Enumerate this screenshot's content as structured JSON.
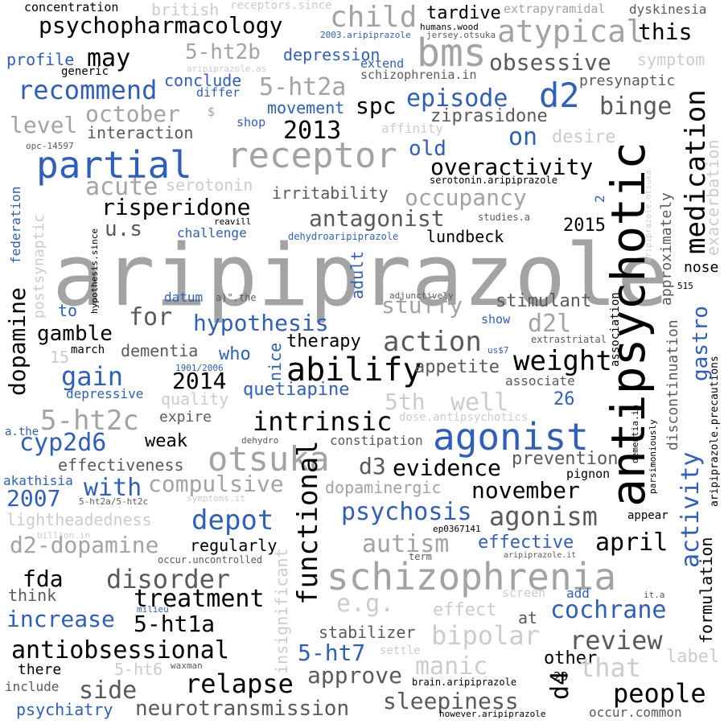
{
  "words": [
    {
      "text": "aripiprazole",
      "color": "light",
      "size": "xl"
    },
    {
      "text": "antipsychotic",
      "color": "black",
      "size": "xl"
    },
    {
      "text": "receptor",
      "color": "light",
      "size": "l"
    },
    {
      "text": "partial",
      "color": "blue",
      "size": "l"
    },
    {
      "text": "agonist",
      "color": "blue",
      "size": "l"
    },
    {
      "text": "schizophrenia",
      "color": "light",
      "size": "l"
    },
    {
      "text": "otsuka",
      "color": "light",
      "size": "l"
    },
    {
      "text": "bms",
      "color": "light",
      "size": "l"
    },
    {
      "text": "child",
      "color": "light",
      "size": "l"
    },
    {
      "text": "atypical",
      "color": "light",
      "size": "l"
    },
    {
      "text": "d2",
      "color": "blue",
      "size": "l"
    },
    {
      "text": "psychopharmacology",
      "color": "black",
      "size": "m"
    },
    {
      "text": "tardive",
      "color": "black",
      "size": "s"
    },
    {
      "text": "dyskinesia",
      "color": "dark",
      "size": "xs"
    },
    {
      "text": "concentration",
      "color": "black",
      "size": "xs"
    },
    {
      "text": "british",
      "color": "pale",
      "size": "s"
    },
    {
      "text": "receptors.since",
      "color": "pale",
      "size": "xs"
    },
    {
      "text": "extrapyramidal",
      "color": "light",
      "size": "xs"
    },
    {
      "text": "humans.wood",
      "color": "black",
      "size": "xxs"
    },
    {
      "text": "2003.aripiprazole",
      "color": "blue",
      "size": "xxs"
    },
    {
      "text": "jersey.otsuka",
      "color": "dark",
      "size": "xxs"
    },
    {
      "text": "this",
      "color": "black",
      "size": "m"
    },
    {
      "text": "may",
      "color": "black",
      "size": "m"
    },
    {
      "text": "5-ht2b",
      "color": "light",
      "size": "m"
    },
    {
      "text": "profile",
      "color": "blue",
      "size": "s"
    },
    {
      "text": "generic",
      "color": "black",
      "size": "xs"
    },
    {
      "text": "depression",
      "color": "blue",
      "size": "s"
    },
    {
      "text": "extend",
      "color": "blue",
      "size": "xs"
    },
    {
      "text": "obsessive",
      "color": "dark",
      "size": "m"
    },
    {
      "text": "symptom",
      "color": "pale",
      "size": "s"
    },
    {
      "text": "schizophrenia.in",
      "color": "dark",
      "size": "xs"
    },
    {
      "text": "aripiprazole.as",
      "color": "pale",
      "size": "xxs"
    },
    {
      "text": "conclude",
      "color": "blue",
      "size": "s"
    },
    {
      "text": "recommend",
      "color": "blue",
      "size": "m"
    },
    {
      "text": "5-ht2a",
      "color": "light",
      "size": "m"
    },
    {
      "text": "episode",
      "color": "blue",
      "size": "m"
    },
    {
      "text": "presynaptic",
      "color": "dark",
      "size": "s"
    },
    {
      "text": "differ",
      "color": "blue",
      "size": "xs"
    },
    {
      "text": "$",
      "color": "light",
      "size": "xs"
    },
    {
      "text": "movement",
      "color": "blue",
      "size": "s"
    },
    {
      "text": "spc",
      "color": "black",
      "size": "m"
    },
    {
      "text": "binge",
      "color": "dark",
      "size": "m"
    },
    {
      "text": "october",
      "color": "light",
      "size": "m"
    },
    {
      "text": "level",
      "color": "light",
      "size": "m"
    },
    {
      "text": "interaction",
      "color": "dark",
      "size": "s"
    },
    {
      "text": "shop",
      "color": "blue",
      "size": "xs"
    },
    {
      "text": "2013",
      "color": "black",
      "size": "m"
    },
    {
      "text": "ziprasidone",
      "color": "dark",
      "size": "s"
    },
    {
      "text": "affinity",
      "color": "pale",
      "size": "xs"
    },
    {
      "text": "on",
      "color": "blue",
      "size": "m"
    },
    {
      "text": "desire",
      "color": "pale",
      "size": "s"
    },
    {
      "text": "old",
      "color": "blue",
      "size": "m"
    },
    {
      "text": "opc-14597",
      "color": "dark",
      "size": "xxs"
    },
    {
      "text": "medication",
      "color": "black",
      "size": "m"
    },
    {
      "text": "exacerbation",
      "color": "pale",
      "size": "s"
    },
    {
      "text": "overactivity",
      "color": "black",
      "size": "m"
    },
    {
      "text": "acute",
      "color": "light",
      "size": "m"
    },
    {
      "text": "serotonin",
      "color": "pale",
      "size": "s"
    },
    {
      "text": "serotonin.aripiprazole",
      "color": "black",
      "size": "xxs"
    },
    {
      "text": "federation",
      "color": "blue",
      "size": "xs"
    },
    {
      "text": "occupancy",
      "color": "light",
      "size": "m"
    },
    {
      "text": "irritability",
      "color": "dark",
      "size": "s"
    },
    {
      "text": "risperidone",
      "color": "black",
      "size": "m"
    },
    {
      "text": "approximately",
      "color": "dark",
      "size": "s"
    },
    {
      "text": "2",
      "color": "blue",
      "size": "xs"
    },
    {
      "text": "aripiprazole.otsuka",
      "color": "pale",
      "size": "xxs"
    },
    {
      "text": "antagonist",
      "color": "dark",
      "size": "m"
    },
    {
      "text": "u.s",
      "color": "dark",
      "size": "m"
    },
    {
      "text": "reavill",
      "color": "black",
      "size": "xxs"
    },
    {
      "text": "studies.a",
      "color": "dark",
      "size": "xxs"
    },
    {
      "text": "2015",
      "color": "black",
      "size": "s"
    },
    {
      "text": "challenge",
      "color": "blue",
      "size": "xs"
    },
    {
      "text": "dehydroaripiprazole",
      "color": "blue",
      "size": "xxs"
    },
    {
      "text": "lundbeck",
      "color": "black",
      "size": "s"
    },
    {
      "text": "postsynaptic",
      "color": "pale",
      "size": "s"
    },
    {
      "text": "hypothesis.since",
      "color": "black",
      "size": "xxs"
    },
    {
      "text": "nose",
      "color": "black",
      "size": "s"
    },
    {
      "text": "515",
      "color": "black",
      "size": "xxs"
    },
    {
      "text": "dopamine",
      "color": "black",
      "size": "m"
    },
    {
      "text": "to",
      "color": "blue",
      "size": "s"
    },
    {
      "text": "datum",
      "color": "blue",
      "size": "xs"
    },
    {
      "text": "a)\".the",
      "color": "dark",
      "size": "xxs"
    },
    {
      "text": "adult",
      "color": "blue",
      "size": "s"
    },
    {
      "text": "adjunctively",
      "color": "dark",
      "size": "xxs"
    },
    {
      "text": "stuffy",
      "color": "light",
      "size": "m"
    },
    {
      "text": "stimulant",
      "color": "dark",
      "size": "s"
    },
    {
      "text": "association",
      "color": "black",
      "size": "xs"
    },
    {
      "text": "gamble",
      "color": "black",
      "size": "m"
    },
    {
      "text": "for",
      "color": "dark",
      "size": "m"
    },
    {
      "text": "hypothesis",
      "color": "blue",
      "size": "m"
    },
    {
      "text": "show",
      "color": "blue",
      "size": "xs"
    },
    {
      "text": "d2l",
      "color": "light",
      "size": "m"
    },
    {
      "text": "discontinuation",
      "color": "dark",
      "size": "s"
    },
    {
      "text": "gastro",
      "color": "blue",
      "size": "m"
    },
    {
      "text": "extrastriatal",
      "color": "dark",
      "size": "xxs"
    },
    {
      "text": "aripiprazole.precautions",
      "color": "black",
      "size": "xs"
    },
    {
      "text": "15",
      "color": "pale",
      "size": "s"
    },
    {
      "text": "march",
      "color": "black",
      "size": "xs"
    },
    {
      "text": "dementia",
      "color": "dark",
      "size": "s"
    },
    {
      "text": "who",
      "color": "blue",
      "size": "s"
    },
    {
      "text": "nice",
      "color": "blue",
      "size": "s"
    },
    {
      "text": "therapy",
      "color": "black",
      "size": "s"
    },
    {
      "text": "action",
      "color": "dark",
      "size": "m"
    },
    {
      "text": "1901/2006",
      "color": "blue",
      "size": "xxs"
    },
    {
      "text": "us$7",
      "color": "blue",
      "size": "xxs"
    },
    {
      "text": "weight",
      "color": "black",
      "size": "m"
    },
    {
      "text": "gain",
      "color": "blue",
      "size": "m"
    },
    {
      "text": "2014",
      "color": "black",
      "size": "m"
    },
    {
      "text": "abilify",
      "color": "black",
      "size": "l"
    },
    {
      "text": "appetite",
      "color": "dark",
      "size": "s"
    },
    {
      "text": "associate",
      "color": "dark",
      "size": "xs"
    },
    {
      "text": "depressive",
      "color": "blue",
      "size": "xs"
    },
    {
      "text": "quetiapine",
      "color": "blue",
      "size": "s"
    },
    {
      "text": "quality",
      "color": "pale",
      "size": "s"
    },
    {
      "text": "5th",
      "color": "pale",
      "size": "m"
    },
    {
      "text": "well",
      "color": "pale",
      "size": "m"
    },
    {
      "text": "26",
      "color": "blue",
      "size": "s"
    },
    {
      "text": "parsimoniously",
      "color": "black",
      "size": "xxs"
    },
    {
      "text": "5-ht2c",
      "color": "light",
      "size": "m"
    },
    {
      "text": "expire",
      "color": "dark",
      "size": "s"
    },
    {
      "text": "intrinsic",
      "color": "black",
      "size": "m"
    },
    {
      "text": "dose.antipsychotics",
      "color": "pale",
      "size": "xs"
    },
    {
      "text": "a.the",
      "color": "blue",
      "size": "xs"
    },
    {
      "text": "cyp2d6",
      "color": "blue",
      "size": "m"
    },
    {
      "text": "weak",
      "color": "black",
      "size": "s"
    },
    {
      "text": "dehydro",
      "color": "dark",
      "size": "xxs"
    },
    {
      "text": "constipation",
      "color": "dark",
      "size": "xs"
    },
    {
      "text": "dementia.in",
      "color": "black",
      "size": "xxs"
    },
    {
      "text": "d3",
      "color": "dark",
      "size": "m"
    },
    {
      "text": "evidence",
      "color": "black",
      "size": "m"
    },
    {
      "text": "prevention",
      "color": "dark",
      "size": "s"
    },
    {
      "text": "pignon",
      "color": "black",
      "size": "xs"
    },
    {
      "text": "effectiveness",
      "color": "dark",
      "size": "s"
    },
    {
      "text": "akathisia",
      "color": "blue",
      "size": "xs"
    },
    {
      "text": "2007",
      "color": "blue",
      "size": "m"
    },
    {
      "text": "with",
      "color": "blue",
      "size": "m"
    },
    {
      "text": "compulsive",
      "color": "light",
      "size": "m"
    },
    {
      "text": "5-ht2a/5-ht2c",
      "color": "dark",
      "size": "xxs"
    },
    {
      "text": "symptoms.it",
      "color": "pale",
      "size": "xxs"
    },
    {
      "text": "dopaminergic",
      "color": "light",
      "size": "s"
    },
    {
      "text": "november",
      "color": "black",
      "size": "m"
    },
    {
      "text": "depot",
      "color": "blue",
      "size": "m"
    },
    {
      "text": "psychosis",
      "color": "blue",
      "size": "m"
    },
    {
      "text": "agonism",
      "color": "dark",
      "size": "m"
    },
    {
      "text": "appear",
      "color": "black",
      "size": "xs"
    },
    {
      "text": "functional",
      "color": "black",
      "size": "m"
    },
    {
      "text": "lightheadedness",
      "color": "pale",
      "size": "s"
    },
    {
      "text": "billion.in",
      "color": "pale",
      "size": "xxs"
    },
    {
      "text": "ep0367141",
      "color": "black",
      "size": "xxs"
    },
    {
      "text": "activity",
      "color": "blue",
      "size": "m"
    },
    {
      "text": "formulation",
      "color": "black",
      "size": "s"
    },
    {
      "text": "d2-dopamine",
      "color": "light",
      "size": "m"
    },
    {
      "text": "regularly",
      "color": "black",
      "size": "s"
    },
    {
      "text": "autism",
      "color": "light",
      "size": "m"
    },
    {
      "text": "effective",
      "color": "blue",
      "size": "s"
    },
    {
      "text": "april",
      "color": "black",
      "size": "m"
    },
    {
      "text": "occur.uncontrolled",
      "color": "dark",
      "size": "xxs"
    },
    {
      "text": "term",
      "color": "dark",
      "size": "xxs"
    },
    {
      "text": "aripiprazole.it",
      "color": "dark",
      "size": "xxs"
    },
    {
      "text": "fda",
      "color": "black",
      "size": "m"
    },
    {
      "text": "disorder",
      "color": "dark",
      "size": "m"
    },
    {
      "text": "insignificant",
      "color": "pale",
      "size": "s"
    },
    {
      "text": "think",
      "color": "dark",
      "size": "s"
    },
    {
      "text": "treatment",
      "color": "black",
      "size": "m"
    },
    {
      "text": "e.g.",
      "color": "pale",
      "size": "m"
    },
    {
      "text": "milieu",
      "color": "blue",
      "size": "xxs"
    },
    {
      "text": "screen",
      "color": "pale",
      "size": "xs"
    },
    {
      "text": "add",
      "color": "blue",
      "size": "xs"
    },
    {
      "text": "it.a",
      "color": "dark",
      "size": "xxs"
    },
    {
      "text": "increase",
      "color": "blue",
      "size": "m"
    },
    {
      "text": "5-ht1a",
      "color": "black",
      "size": "m"
    },
    {
      "text": "effect",
      "color": "pale",
      "size": "s"
    },
    {
      "text": "at",
      "color": "dark",
      "size": "s"
    },
    {
      "text": "cochrane",
      "color": "blue",
      "size": "m"
    },
    {
      "text": "stabilizer",
      "color": "dark",
      "size": "s"
    },
    {
      "text": "bipolar",
      "color": "pale",
      "size": "m"
    },
    {
      "text": "review",
      "color": "dark",
      "size": "m"
    },
    {
      "text": "antiobsessional",
      "color": "black",
      "size": "m"
    },
    {
      "text": "5-ht7",
      "color": "blue",
      "size": "m"
    },
    {
      "text": "settle",
      "color": "pale",
      "size": "xxs"
    },
    {
      "text": "other",
      "color": "black",
      "size": "s"
    },
    {
      "text": "label",
      "color": "pale",
      "size": "s"
    },
    {
      "text": "there",
      "color": "black",
      "size": "s"
    },
    {
      "text": "5-ht6",
      "color": "pale",
      "size": "s"
    },
    {
      "text": "waxman",
      "color": "dark",
      "size": "xxs"
    },
    {
      "text": "approve",
      "color": "dark",
      "size": "m"
    },
    {
      "text": "manic",
      "color": "pale",
      "size": "m"
    },
    {
      "text": "that",
      "color": "pale",
      "size": "m"
    },
    {
      "text": "d4",
      "color": "black",
      "size": "m"
    },
    {
      "text": "20",
      "color": "black",
      "size": "xs"
    },
    {
      "text": "include",
      "color": "dark",
      "size": "xs"
    },
    {
      "text": "side",
      "color": "dark",
      "size": "m"
    },
    {
      "text": "relapse",
      "color": "black",
      "size": "m"
    },
    {
      "text": "brain.aripiprazole",
      "color": "black",
      "size": "xxs"
    },
    {
      "text": "people",
      "color": "black",
      "size": "m"
    },
    {
      "text": "psychiatry",
      "color": "blue",
      "size": "s"
    },
    {
      "text": "neurotransmission",
      "color": "dark",
      "size": "m"
    },
    {
      "text": "sleepiness",
      "color": "dark",
      "size": "m"
    },
    {
      "text": "however.aripiprazole",
      "color": "black",
      "size": "xxs"
    },
    {
      "text": "occur.common",
      "color": "dark",
      "size": "xs"
    }
  ]
}
